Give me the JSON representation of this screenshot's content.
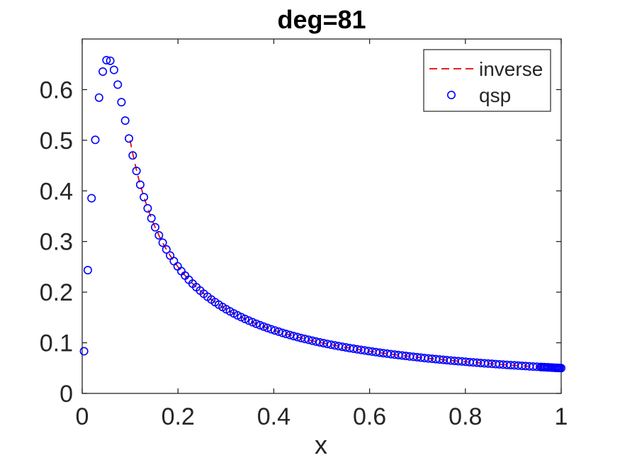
{
  "figure": {
    "background": "#ffffff",
    "axis_color": "#262626",
    "text_color": "#262626"
  },
  "chart_data": {
    "type": "scatter",
    "title": "deg=81",
    "xlabel": "x",
    "ylabel": "",
    "xlim": [
      0,
      1
    ],
    "ylim": [
      0,
      0.7
    ],
    "xticks": [
      0,
      0.2,
      0.4,
      0.6,
      0.8,
      1
    ],
    "xtick_labels": [
      "0",
      "0.2",
      "0.4",
      "0.6",
      "0.8",
      "1"
    ],
    "yticks": [
      0,
      0.1,
      0.2,
      0.3,
      0.4,
      0.5,
      0.6
    ],
    "ytick_labels": [
      "0",
      "0.1",
      "0.2",
      "0.3",
      "0.4",
      "0.5",
      "0.6"
    ],
    "grid": false,
    "box": true,
    "legend": {
      "position": "northeast",
      "entries": [
        {
          "label": "inverse",
          "swatch": "dashed-line",
          "color": "#e60000"
        },
        {
          "label": "qsp",
          "swatch": "circle-marker",
          "color": "#0000ff"
        }
      ]
    },
    "series": [
      {
        "name": "inverse",
        "type": "line",
        "linestyle": "dashed",
        "color": "#e60000",
        "formula": "y = 0.05/x",
        "coefficient": 0.05,
        "x_range": [
          0.1,
          1
        ],
        "x_samples": [
          0.1,
          0.15,
          0.2,
          0.3,
          0.4,
          0.5,
          0.6,
          0.7,
          0.8,
          0.9,
          1
        ],
        "y_samples": [
          0.5,
          0.3333,
          0.25,
          0.1667,
          0.125,
          0.1,
          0.0833,
          0.0714,
          0.0625,
          0.0556,
          0.05
        ]
      },
      {
        "name": "qsp",
        "type": "scatter",
        "marker": "o",
        "color": "#0000ff",
        "x": [
          0.0039,
          0.0117,
          0.0195,
          0.0273,
          0.0352,
          0.043,
          0.0508,
          0.0586,
          0.0664,
          0.0742,
          0.082,
          0.0898,
          0.0977,
          0.1055,
          0.1133,
          0.1211,
          0.1289,
          0.1367,
          0.1445,
          0.1523,
          0.1602,
          0.168,
          0.1758,
          0.1836,
          0.1914,
          0.1992,
          0.207,
          0.2148,
          0.2227,
          0.2305,
          0.2383,
          0.2461,
          0.2539,
          0.2617,
          0.2695,
          0.2773,
          0.2852,
          0.293,
          0.3008,
          0.3086,
          0.3164,
          0.3242,
          0.332,
          0.3398,
          0.3477,
          0.3555,
          0.3633,
          0.3711,
          0.3789,
          0.3867,
          0.3945,
          0.4023,
          0.4102,
          0.418,
          0.4258,
          0.4336,
          0.4414,
          0.4492,
          0.457,
          0.4648,
          0.4727,
          0.4805,
          0.4883,
          0.4961,
          0.5039,
          0.5117,
          0.5195,
          0.5273,
          0.5352,
          0.543,
          0.5508,
          0.5586,
          0.5664,
          0.5742,
          0.582,
          0.5898,
          0.5977,
          0.6055,
          0.6133,
          0.6211,
          0.6289,
          0.6367,
          0.6445,
          0.6523,
          0.6602,
          0.668,
          0.6758,
          0.6836,
          0.6914,
          0.6992,
          0.707,
          0.7148,
          0.7227,
          0.7305,
          0.7383,
          0.7461,
          0.7539,
          0.7617,
          0.7695,
          0.7773,
          0.7852,
          0.793,
          0.8008,
          0.8086,
          0.8164,
          0.8242,
          0.832,
          0.8398,
          0.8477,
          0.8555,
          0.8633,
          0.8711,
          0.8789,
          0.8867,
          0.8945,
          0.9023,
          0.9102,
          0.918,
          0.9258,
          0.9336,
          0.9414,
          0.9492,
          0.957,
          0.9648,
          0.9727,
          0.9805,
          0.9883,
          0.9961,
          0.958,
          0.961,
          0.964,
          0.967,
          0.97,
          0.973,
          0.976,
          0.979,
          0.982,
          0.985,
          0.988,
          0.991,
          0.994,
          0.997,
          1
        ],
        "y": [
          0.0833,
          0.2435,
          0.3856,
          0.5008,
          0.5842,
          0.6356,
          0.6581,
          0.657,
          0.6389,
          0.6099,
          0.5753,
          0.5389,
          0.5034,
          0.47,
          0.4395,
          0.4121,
          0.3876,
          0.3656,
          0.3459,
          0.3282,
          0.3122,
          0.2977,
          0.2844,
          0.2723,
          0.2612,
          0.251,
          0.2415,
          0.2327,
          0.2246,
          0.2169,
          0.2098,
          0.2032,
          0.1969,
          0.191,
          0.1855,
          0.1803,
          0.1753,
          0.1707,
          0.1662,
          0.162,
          0.158,
          0.1542,
          0.1506,
          0.1471,
          0.1438,
          0.1407,
          0.1376,
          0.1347,
          0.132,
          0.1293,
          0.1267,
          0.1243,
          0.1219,
          0.1196,
          0.1174,
          0.1153,
          0.1133,
          0.1113,
          0.1094,
          0.1076,
          0.1058,
          0.1041,
          0.1024,
          0.1008,
          0.0992,
          0.0977,
          0.0962,
          0.0948,
          0.0934,
          0.0921,
          0.0908,
          0.0895,
          0.0883,
          0.0871,
          0.0859,
          0.0848,
          0.0837,
          0.0826,
          0.0815,
          0.0805,
          0.0795,
          0.0785,
          0.0776,
          0.0766,
          0.0757,
          0.0749,
          0.074,
          0.0731,
          0.0723,
          0.0715,
          0.0707,
          0.0699,
          0.0692,
          0.0684,
          0.0677,
          0.067,
          0.0663,
          0.0656,
          0.065,
          0.0643,
          0.0637,
          0.0631,
          0.0624,
          0.0618,
          0.0612,
          0.0607,
          0.0601,
          0.0595,
          0.059,
          0.0584,
          0.0579,
          0.0574,
          0.0569,
          0.0564,
          0.0559,
          0.0554,
          0.0549,
          0.0545,
          0.054,
          0.0536,
          0.0531,
          0.0527,
          0.0522,
          0.0518,
          0.0514,
          0.051,
          0.0506,
          0.0502,
          0.0522,
          0.052,
          0.0519,
          0.0517,
          0.0515,
          0.0514,
          0.0512,
          0.0511,
          0.0509,
          0.0508,
          0.0506,
          0.0505,
          0.0503,
          0.0502,
          0.05
        ]
      }
    ]
  }
}
